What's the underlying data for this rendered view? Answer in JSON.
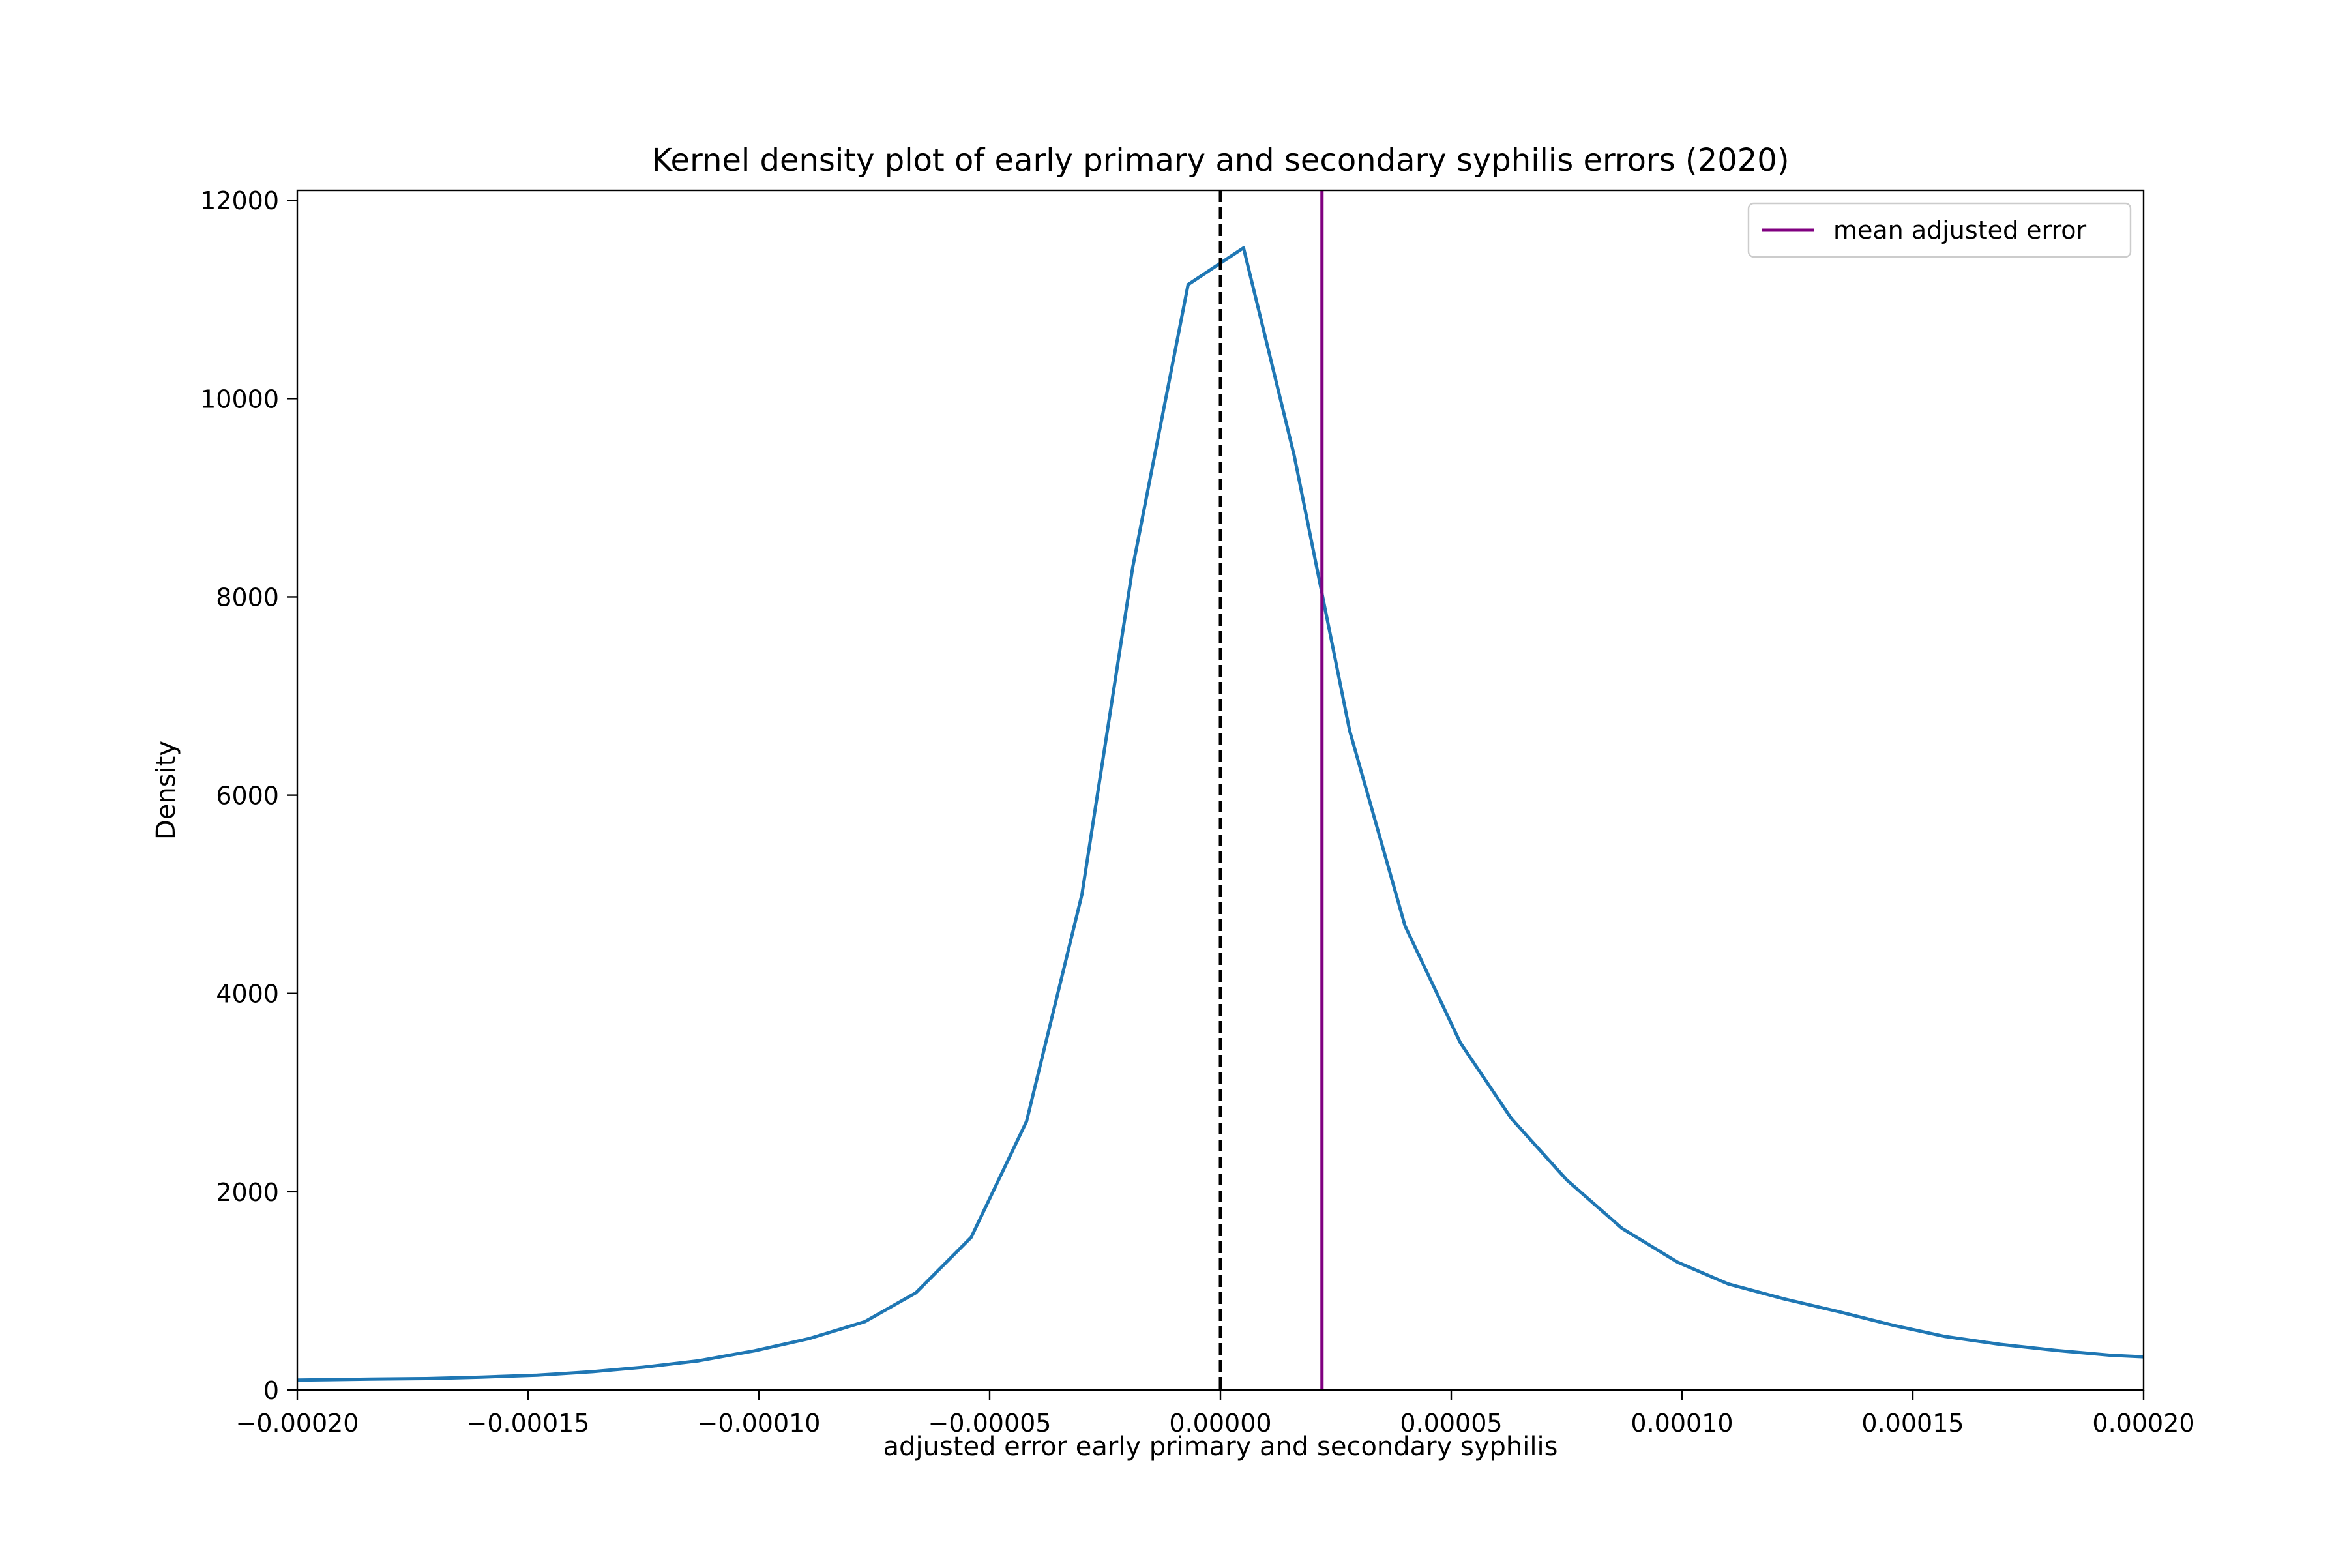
{
  "chart_data": {
    "type": "line",
    "title": "Kernel density plot of early primary and secondary syphilis errors (2020)",
    "xlabel": "adjusted error early primary and secondary syphilis",
    "ylabel": "Density",
    "xlim": [
      -0.0002,
      0.0002
    ],
    "ylim": [
      0,
      12100
    ],
    "x_ticks": [
      -0.0002,
      -0.00015,
      -0.0001,
      -5e-05,
      0.0,
      5e-05,
      0.0001,
      0.00015,
      0.0002
    ],
    "x_tick_labels": [
      "−0.00020",
      "−0.00015",
      "−0.00010",
      "−0.00005",
      "0.00000",
      "0.00005",
      "0.00010",
      "0.00015",
      "0.00020"
    ],
    "y_ticks": [
      0,
      2000,
      4000,
      6000,
      8000,
      10000,
      12000
    ],
    "y_tick_labels": [
      "0",
      "2000",
      "4000",
      "6000",
      "8000",
      "10000",
      "12000"
    ],
    "grid": false,
    "legend": {
      "placement": "top-right",
      "entries": [
        "mean adjusted error"
      ]
    },
    "series": [
      {
        "color": "#1f77b4",
        "x": [
          -0.0002,
          -0.000184,
          -0.000172,
          -0.00016,
          -0.000148,
          -0.000136,
          -0.000125,
          -0.000113,
          -0.000101,
          -8.9e-05,
          -7.7e-05,
          -6.6e-05,
          -5.4e-05,
          -4.2e-05,
          -3e-05,
          -1.9e-05,
          -7e-06,
          5e-06,
          1.6e-05,
          2.8e-05,
          4e-05,
          5.2e-05,
          6.3e-05,
          7.5e-05,
          8.7e-05,
          9.9e-05,
          0.00011,
          0.000122,
          0.000134,
          0.000146,
          0.000157,
          0.000169,
          0.000181,
          0.000193,
          0.0002
        ],
        "values": [
          100,
          110,
          115,
          130,
          150,
          185,
          230,
          295,
          395,
          520,
          690,
          980,
          1540,
          2710,
          5000,
          8300,
          11150,
          11520,
          9420,
          6650,
          4680,
          3500,
          2740,
          2120,
          1630,
          1290,
          1070,
          920,
          790,
          650,
          540,
          460,
          400,
          350,
          335
        ]
      }
    ],
    "reference_lines": [
      {
        "type": "vertical",
        "x": 0.0,
        "style": "dashed",
        "color": "#000000"
      },
      {
        "type": "vertical",
        "x": 2.2e-05,
        "style": "solid",
        "color": "#800080",
        "label": "mean adjusted error"
      }
    ]
  }
}
